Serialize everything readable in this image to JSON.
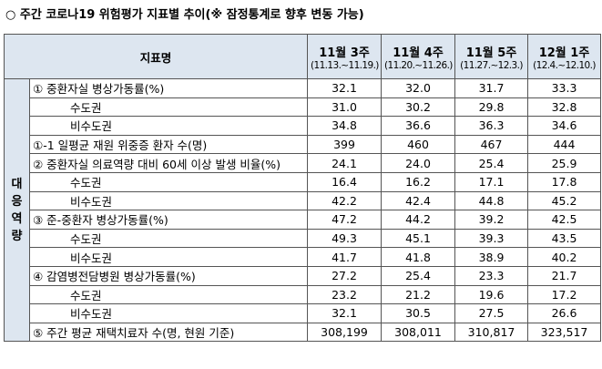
{
  "header": {
    "title": "○ 주간 코로나19 위험평가 지표별 추이(※ 잠정통계로 향후 변동 가능)"
  },
  "table": {
    "columns": [
      "지표명",
      {
        "week": "11월 3주",
        "range": "(11.13.~11.19.)"
      },
      {
        "week": "11월 4주",
        "range": "(11.20.~11.26.)"
      },
      {
        "week": "11월 5주",
        "range": "(11.27.~12.3.)"
      },
      {
        "week": "12월 1주",
        "range": "(12.4.~12.10.)"
      }
    ],
    "group": "대응역량",
    "rows": [
      [
        "① 중환자실 병상가동률(%)",
        "32.1",
        "32.0",
        "31.7",
        "33.3"
      ],
      [
        "수도권",
        "31.0",
        "30.2",
        "29.8",
        "32.8"
      ],
      [
        "비수도권",
        "34.8",
        "36.6",
        "36.3",
        "34.6"
      ],
      [
        "①-1 일평균 재원 위중증 환자 수(명)",
        "399",
        "460",
        "467",
        "444"
      ],
      [
        "② 중환자실 의료역량 대비 60세 이상 발생 비율(%)",
        "24.1",
        "24.0",
        "25.4",
        "25.9"
      ],
      [
        "수도권",
        "16.4",
        "16.2",
        "17.1",
        "17.8"
      ],
      [
        "비수도권",
        "42.2",
        "42.4",
        "44.8",
        "45.2"
      ],
      [
        "③ 준-중환자 병상가동률(%)",
        "47.2",
        "44.2",
        "39.2",
        "42.5"
      ],
      [
        "수도권",
        "49.3",
        "45.1",
        "39.3",
        "43.5"
      ],
      [
        "비수도권",
        "41.7",
        "41.8",
        "38.9",
        "40.2"
      ],
      [
        "④ 감염병전담병원 병상가동률(%)",
        "27.2",
        "25.4",
        "23.3",
        "21.7"
      ],
      [
        "수도권",
        "23.2",
        "21.2",
        "19.6",
        "17.2"
      ],
      [
        "비수도권",
        "32.1",
        "30.5",
        "27.5",
        "26.6"
      ],
      [
        "⑤ 주간 평균 재택치료자 수(명, 현원 기준)",
        "308,199",
        "308,011",
        "310,817",
        "323,517"
      ]
    ]
  }
}
